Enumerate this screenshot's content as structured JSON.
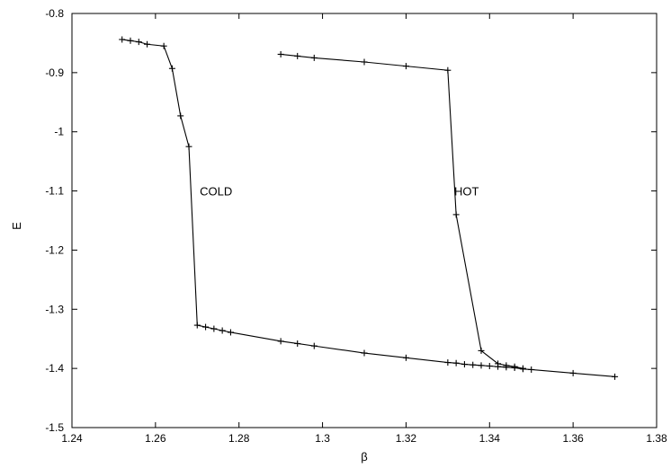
{
  "chart_data": {
    "type": "line",
    "title": "",
    "xlabel": "β",
    "ylabel": "E",
    "xlim": [
      1.24,
      1.38
    ],
    "ylim": [
      -1.5,
      -0.8
    ],
    "grid": false,
    "x_ticks": [
      "1.24",
      "1.26",
      "1.28",
      "1.3",
      "1.32",
      "1.34",
      "1.36",
      "1.38"
    ],
    "y_ticks": [
      "-1.5",
      "-1.4",
      "-1.3",
      "-1.2",
      "-1.1",
      "-1",
      "-0.9",
      "-0.8"
    ],
    "series": [
      {
        "points": [
          [
            1.252,
            -0.844
          ],
          [
            1.254,
            -0.846
          ],
          [
            1.256,
            -0.848
          ],
          [
            1.258,
            -0.852
          ],
          [
            1.262,
            -0.855
          ],
          [
            1.264,
            -0.893
          ],
          [
            1.266,
            -0.973
          ],
          [
            1.268,
            -1.025
          ],
          [
            1.27,
            -1.327
          ],
          [
            1.272,
            -1.33
          ],
          [
            1.274,
            -1.333
          ],
          [
            1.276,
            -1.336
          ],
          [
            1.278,
            -1.339
          ],
          [
            1.29,
            -1.354
          ],
          [
            1.294,
            -1.358
          ],
          [
            1.298,
            -1.362
          ],
          [
            1.31,
            -1.374
          ],
          [
            1.32,
            -1.382
          ],
          [
            1.33,
            -1.39
          ],
          [
            1.332,
            -1.391
          ],
          [
            1.334,
            -1.393
          ],
          [
            1.336,
            -1.394
          ],
          [
            1.338,
            -1.395
          ],
          [
            1.34,
            -1.396
          ],
          [
            1.342,
            -1.397
          ],
          [
            1.344,
            -1.398
          ],
          [
            1.346,
            -1.399
          ],
          [
            1.348,
            -1.401
          ],
          [
            1.35,
            -1.402
          ],
          [
            1.36,
            -1.408
          ],
          [
            1.37,
            -1.414
          ]
        ]
      },
      {
        "points": [
          [
            1.29,
            -0.869
          ],
          [
            1.294,
            -0.872
          ],
          [
            1.298,
            -0.875
          ],
          [
            1.31,
            -0.882
          ],
          [
            1.32,
            -0.889
          ],
          [
            1.33,
            -0.896
          ],
          [
            1.332,
            -1.14
          ],
          [
            1.338,
            -1.37
          ],
          [
            1.342,
            -1.392
          ],
          [
            1.344,
            -1.395
          ],
          [
            1.346,
            -1.397
          ],
          [
            1.348,
            -1.4
          ]
        ]
      }
    ],
    "annotations": [
      {
        "text": "COLD",
        "x": 1.2745,
        "y": -1.1
      },
      {
        "text": "HOT",
        "x": 1.3345,
        "y": -1.1
      }
    ]
  }
}
